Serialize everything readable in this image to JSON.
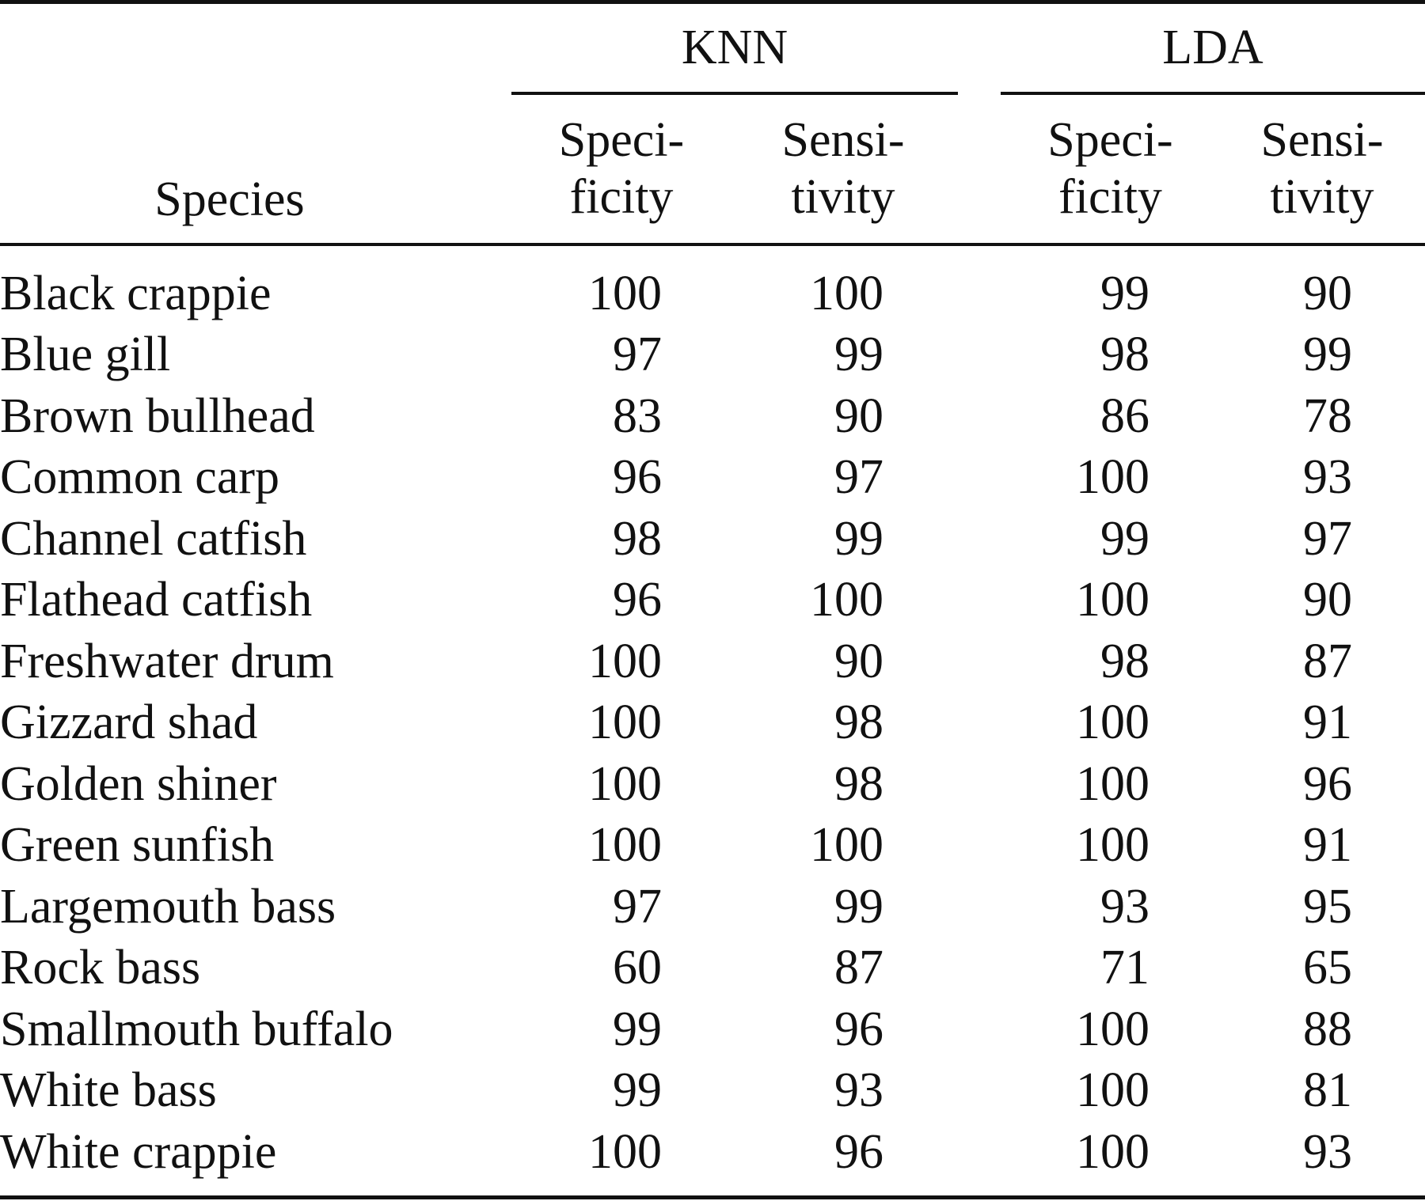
{
  "table": {
    "group_headers": [
      "KNN",
      "LDA"
    ],
    "species_header": "Species",
    "sub_headers": [
      [
        "Speci-",
        "ficity"
      ],
      [
        "Sensi-",
        "tivity"
      ],
      [
        "Speci-",
        "ficity"
      ],
      [
        "Sensi-",
        "tivity"
      ]
    ],
    "rows": [
      {
        "species": "Black crappie",
        "knn_specificity": "100",
        "knn_sensitivity": "100",
        "lda_specificity": "99",
        "lda_sensitivity": "90"
      },
      {
        "species": "Blue gill",
        "knn_specificity": "97",
        "knn_sensitivity": "99",
        "lda_specificity": "98",
        "lda_sensitivity": "99"
      },
      {
        "species": "Brown bullhead",
        "knn_specificity": "83",
        "knn_sensitivity": "90",
        "lda_specificity": "86",
        "lda_sensitivity": "78"
      },
      {
        "species": "Common carp",
        "knn_specificity": "96",
        "knn_sensitivity": "97",
        "lda_specificity": "100",
        "lda_sensitivity": "93"
      },
      {
        "species": "Channel catfish",
        "knn_specificity": "98",
        "knn_sensitivity": "99",
        "lda_specificity": "99",
        "lda_sensitivity": "97"
      },
      {
        "species": "Flathead catfish",
        "knn_specificity": "96",
        "knn_sensitivity": "100",
        "lda_specificity": "100",
        "lda_sensitivity": "90"
      },
      {
        "species": "Freshwater drum",
        "knn_specificity": "100",
        "knn_sensitivity": "90",
        "lda_specificity": "98",
        "lda_sensitivity": "87"
      },
      {
        "species": "Gizzard shad",
        "knn_specificity": "100",
        "knn_sensitivity": "98",
        "lda_specificity": "100",
        "lda_sensitivity": "91"
      },
      {
        "species": "Golden shiner",
        "knn_specificity": "100",
        "knn_sensitivity": "98",
        "lda_specificity": "100",
        "lda_sensitivity": "96"
      },
      {
        "species": "Green sunfish",
        "knn_specificity": "100",
        "knn_sensitivity": "100",
        "lda_specificity": "100",
        "lda_sensitivity": "91"
      },
      {
        "species": "Largemouth bass",
        "knn_specificity": "97",
        "knn_sensitivity": "99",
        "lda_specificity": "93",
        "lda_sensitivity": "95"
      },
      {
        "species": "Rock bass",
        "knn_specificity": "60",
        "knn_sensitivity": "87",
        "lda_specificity": "71",
        "lda_sensitivity": "65"
      },
      {
        "species": "Smallmouth buffalo",
        "knn_specificity": "99",
        "knn_sensitivity": "96",
        "lda_specificity": "100",
        "lda_sensitivity": "88"
      },
      {
        "species": "White bass",
        "knn_specificity": "99",
        "knn_sensitivity": "93",
        "lda_specificity": "100",
        "lda_sensitivity": "81"
      },
      {
        "species": "White crappie",
        "knn_specificity": "100",
        "knn_sensitivity": "96",
        "lda_specificity": "100",
        "lda_sensitivity": "93"
      }
    ]
  }
}
